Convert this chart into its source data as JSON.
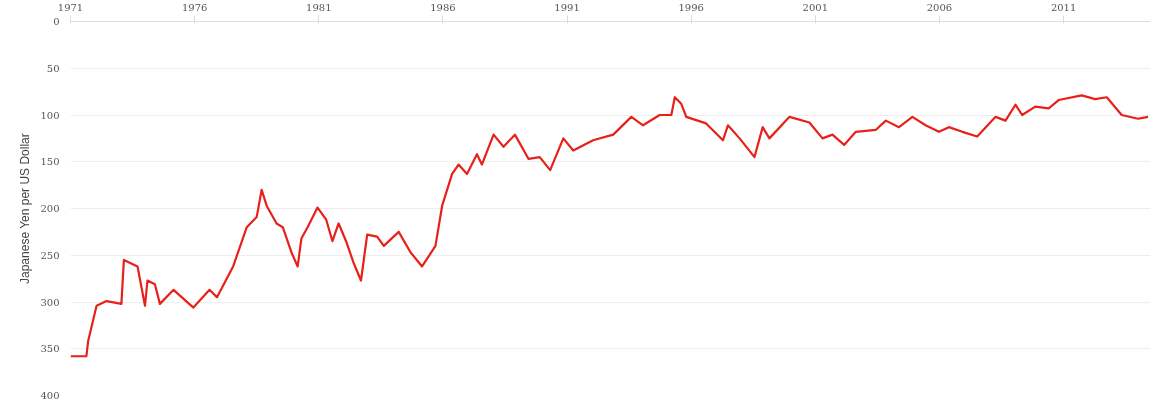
{
  "chart_data": {
    "type": "line",
    "ylabel": "Japanese Yen per US Dollar",
    "x": [
      1971.0,
      1971.64,
      1971.71,
      1972.05,
      1972.45,
      1973.05,
      1973.15,
      1973.7,
      1974.0,
      1974.1,
      1974.4,
      1974.6,
      1975.15,
      1975.95,
      1976.6,
      1976.9,
      1977.55,
      1978.1,
      1978.5,
      1978.7,
      1978.9,
      1979.3,
      1979.55,
      1979.9,
      1980.15,
      1980.3,
      1980.55,
      1980.95,
      1981.3,
      1981.55,
      1981.8,
      1982.1,
      1982.4,
      1982.7,
      1982.95,
      1983.35,
      1983.62,
      1984.22,
      1984.7,
      1985.16,
      1985.7,
      1985.97,
      1986.37,
      1986.63,
      1986.97,
      1987.37,
      1987.57,
      1988.04,
      1988.44,
      1988.9,
      1989.45,
      1989.9,
      1990.32,
      1990.85,
      1991.25,
      1992.05,
      1992.86,
      1993.59,
      1994.06,
      1994.73,
      1995.2,
      1995.34,
      1995.6,
      1995.8,
      1996.6,
      1997.28,
      1997.48,
      1997.95,
      1998.55,
      1998.88,
      1999.15,
      1999.96,
      2000.76,
      2001.29,
      2001.69,
      2002.16,
      2002.63,
      2003.43,
      2003.84,
      2004.37,
      2004.91,
      2005.44,
      2005.98,
      2006.38,
      2006.92,
      2007.52,
      2008.26,
      2008.66,
      2009.06,
      2009.33,
      2009.86,
      2010.4,
      2010.8,
      2011.73,
      2012.27,
      2012.74,
      2013.34,
      2014.0,
      2014.4
    ],
    "series": [
      {
        "color": "#e8201a",
        "values": [
          358,
          358,
          342,
          304,
          299,
          302,
          255,
          262,
          304,
          277,
          281,
          302,
          287,
          306,
          287,
          295,
          262,
          220,
          209,
          180,
          197,
          216,
          220,
          247,
          262,
          232,
          220,
          199,
          212,
          235,
          216,
          235,
          258,
          277,
          228,
          230,
          240,
          225,
          247,
          262,
          240,
          197,
          163,
          153,
          163,
          142,
          153,
          121,
          134,
          121,
          147,
          145,
          159,
          125,
          138,
          127,
          121,
          102,
          111,
          100,
          100,
          81,
          88,
          102,
          109,
          127,
          111,
          125,
          145,
          113,
          125,
          102,
          108,
          125,
          121,
          132,
          118,
          116,
          106,
          113,
          102,
          111,
          118,
          113,
          118,
          123,
          102,
          106,
          89,
          100,
          91,
          93,
          84,
          79,
          83,
          81,
          100,
          104,
          102
        ]
      }
    ],
    "xlim": [
      1971,
      2014.5
    ],
    "ylim": [
      400,
      0
    ],
    "xticks": [
      1971,
      1976,
      1981,
      1986,
      1991,
      1996,
      2001,
      2006,
      2011
    ],
    "yticks": [
      0,
      50,
      100,
      150,
      200,
      250,
      300,
      350,
      400
    ],
    "grid": "y",
    "marker": "none",
    "line_style": "solid"
  }
}
